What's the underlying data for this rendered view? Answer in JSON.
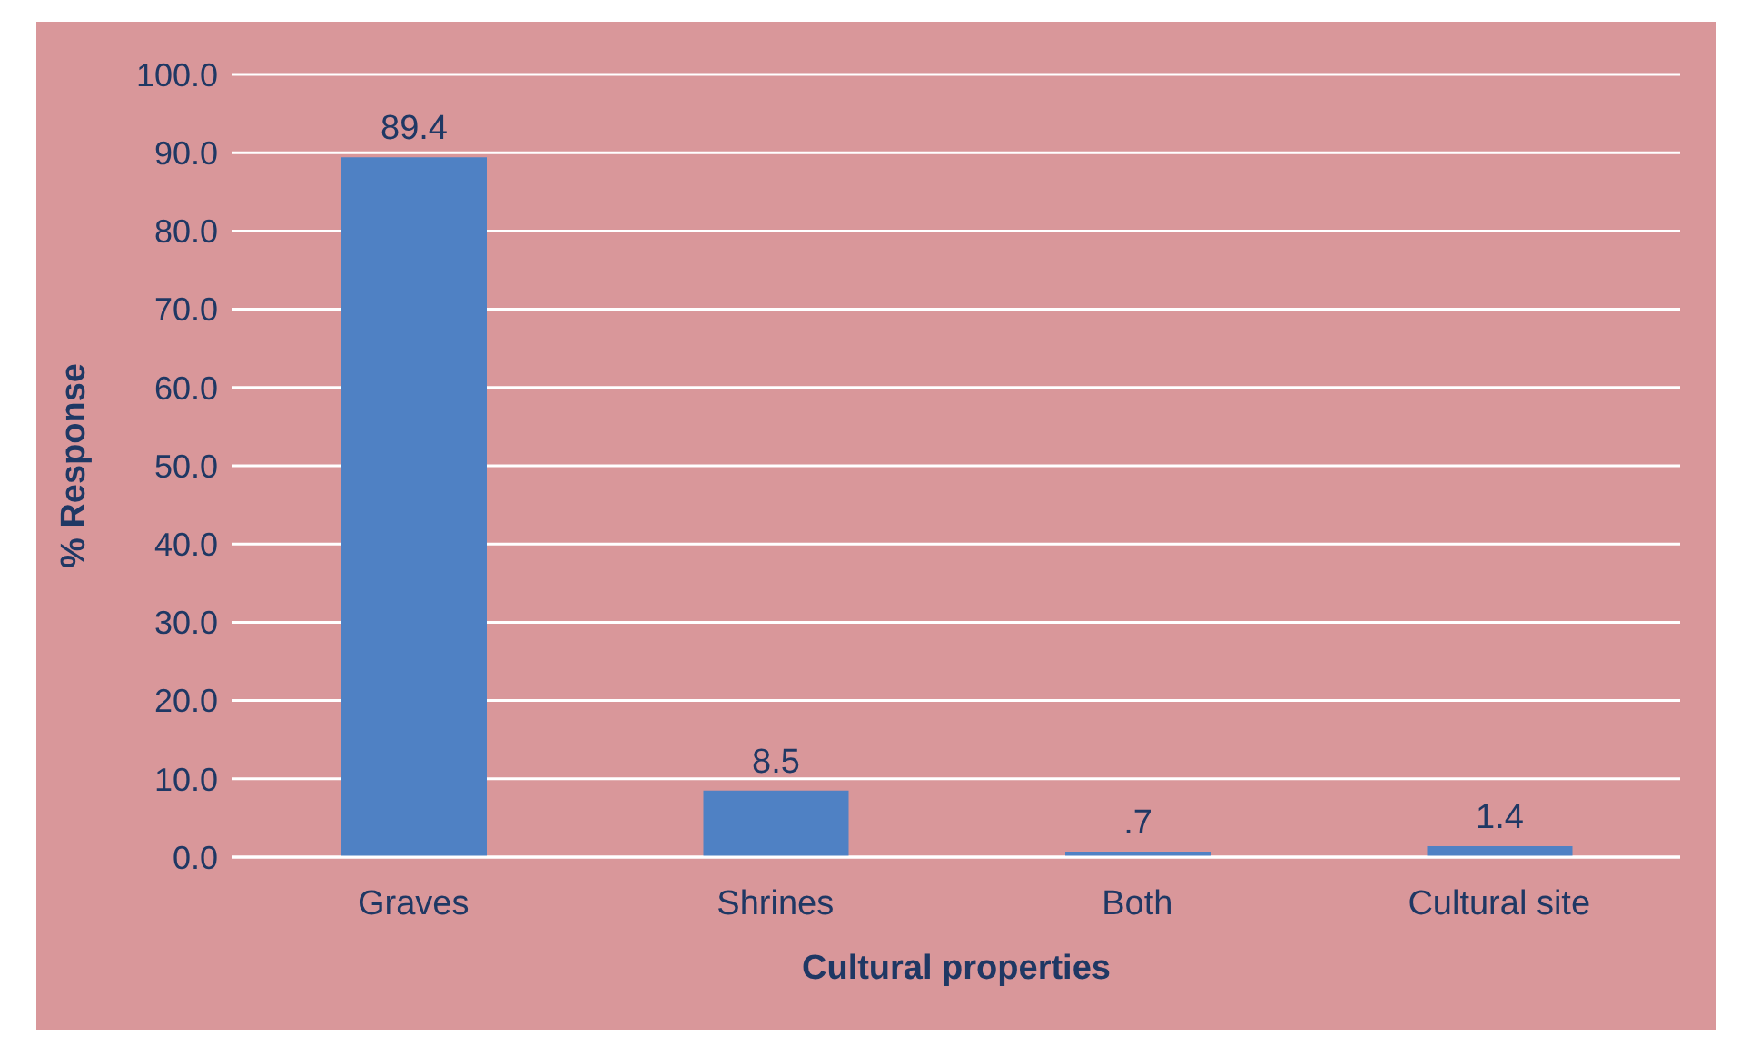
{
  "chart_data": {
    "type": "bar",
    "xlabel": "Cultural properties",
    "ylabel": "% Response",
    "categories": [
      "Graves",
      "Shrines",
      "Both",
      "Cultural site"
    ],
    "values": [
      89.4,
      8.5,
      0.7,
      1.4
    ],
    "value_labels": [
      "89.4",
      "8.5",
      ".7",
      "1.4"
    ],
    "color": "#4f81c4",
    "ylim": [
      0,
      100
    ],
    "yticks": [
      {
        "value": 0,
        "label": "0.0"
      },
      {
        "value": 10,
        "label": "10.0"
      },
      {
        "value": 20,
        "label": "20.0"
      },
      {
        "value": 30,
        "label": "30.0"
      },
      {
        "value": 40,
        "label": "40.0"
      },
      {
        "value": 50,
        "label": "50.0"
      },
      {
        "value": 60,
        "label": "60.0"
      },
      {
        "value": 70,
        "label": "70.0"
      },
      {
        "value": 80,
        "label": "80.0"
      },
      {
        "value": 90,
        "label": "90.0"
      },
      {
        "value": 100,
        "label": "100.0"
      }
    ],
    "grid": "y"
  }
}
